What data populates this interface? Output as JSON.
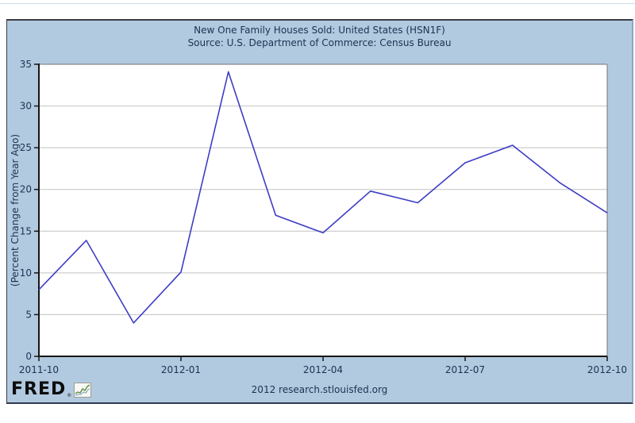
{
  "panel": {
    "title": "New One Family Houses Sold: United States (HSN1F)",
    "source": "Source: U.S. Department of Commerce: Census Bureau",
    "footer_text": "2012 research.stlouisfed.org",
    "logo_text": "FRED",
    "logo_reg_mark": "®",
    "colors": {
      "panel_bg": "#b2cae0",
      "text": "#1a3352",
      "grid": "#c2c2c2",
      "axis": "#161616",
      "frame": "#737373",
      "line": "#3d3dc4"
    }
  },
  "chart_data": {
    "type": "line",
    "title": "New One Family Houses Sold: United States (HSN1F)",
    "subtitle": "Source: U.S. Department of Commerce: Census Bureau",
    "xlabel": "",
    "ylabel": "(Percent Change from Year Ago)",
    "x": [
      "2011-10",
      "2011-11",
      "2011-12",
      "2012-01",
      "2012-02",
      "2012-03",
      "2012-04",
      "2012-05",
      "2012-06",
      "2012-07",
      "2012-08",
      "2012-09",
      "2012-10"
    ],
    "values": [
      8.0,
      13.9,
      4.0,
      10.1,
      34.1,
      16.9,
      14.8,
      19.8,
      18.4,
      23.2,
      25.3,
      20.8,
      17.2
    ],
    "ylim": [
      0,
      35
    ],
    "ytick_step": 5,
    "xtick_labels": [
      "2011-10",
      "2012-01",
      "2012-04",
      "2012-07",
      "2012-10"
    ],
    "xtick_indices": [
      0,
      3,
      6,
      9,
      12
    ],
    "grid": "horizontal-only",
    "legend": "none",
    "line_color": "#3d3dc4"
  }
}
